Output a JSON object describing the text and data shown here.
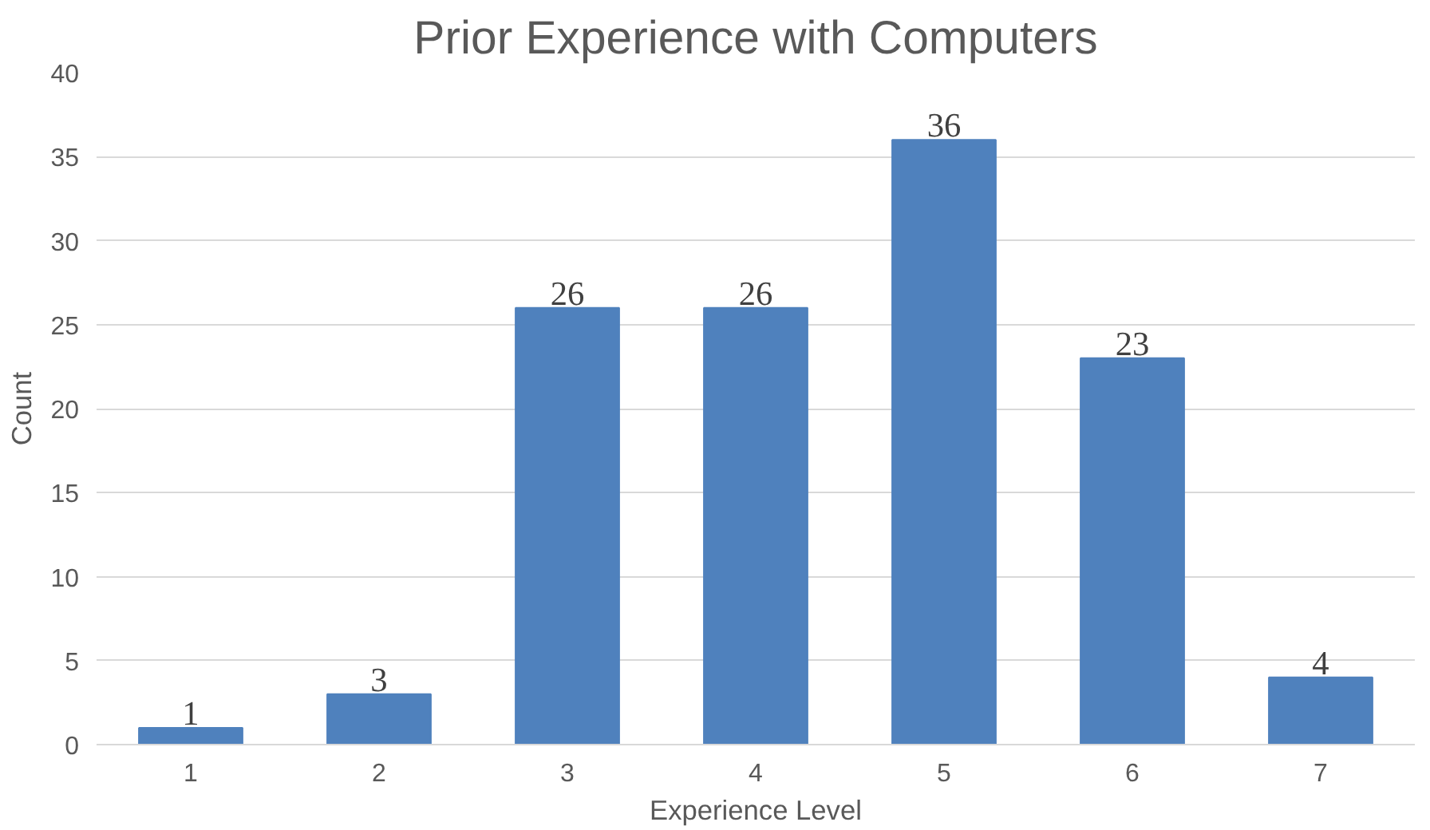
{
  "chart_data": {
    "type": "bar",
    "title": "Prior Experience with Computers",
    "xlabel": "Experience Level",
    "ylabel": "Count",
    "categories": [
      "1",
      "2",
      "3",
      "4",
      "5",
      "6",
      "7"
    ],
    "values": [
      1,
      3,
      26,
      26,
      36,
      23,
      4
    ],
    "color": "#4f81bd",
    "ylim": [
      0,
      40
    ],
    "yticks": [
      0,
      5,
      10,
      15,
      20,
      25,
      30,
      35,
      40
    ],
    "grid": "y",
    "data_labels": true
  }
}
